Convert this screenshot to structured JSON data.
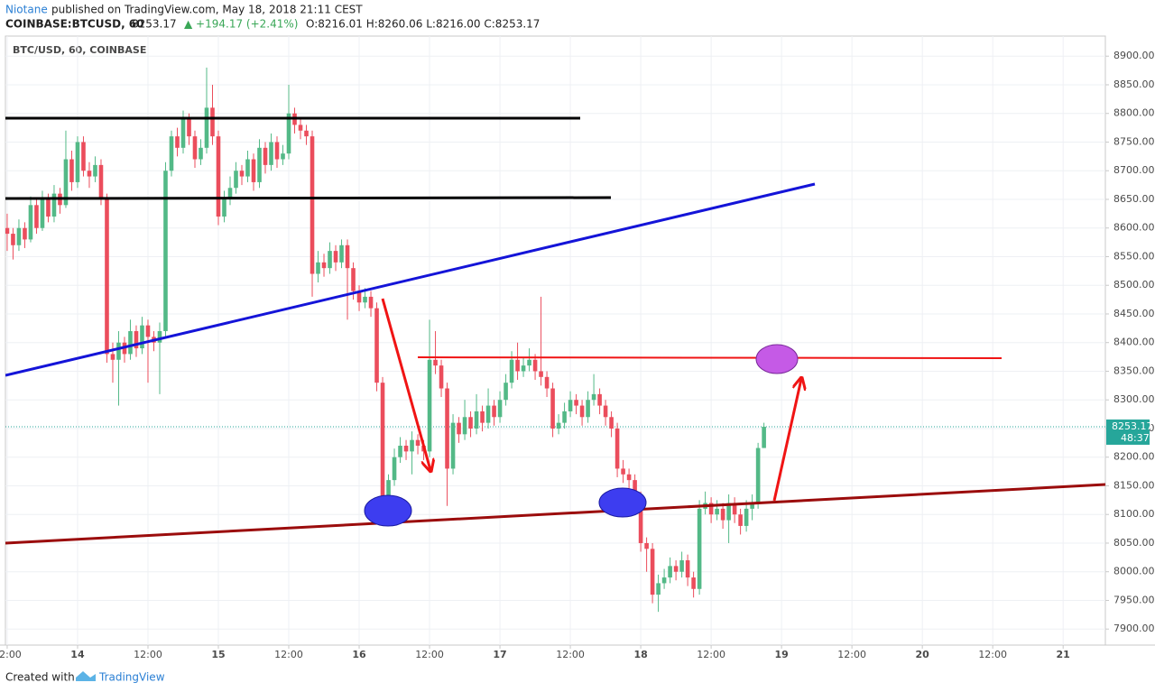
{
  "header": {
    "author": "Niotane",
    "published": "published on TradingView.com, May 18, 2018 21:11 CEST"
  },
  "symbol": {
    "name": "COINBASE:BTCUSD, 60",
    "price": "8253.17",
    "change": "▲ +194.17 (+2.41%)",
    "ohlc": "O:8216.01 H:8260.06 L:8216.00 C:8253.17"
  },
  "footer": {
    "created": "Created with",
    "brand": "TradingView"
  },
  "chart_data": {
    "type": "candlestick",
    "title": "BTC/USD, 60, COINBASE",
    "up_color": "#53b987",
    "down_color": "#eb4d5c",
    "grid": true,
    "last_price": 8253.17,
    "last_price_label": "8253.17",
    "countdown": "48:37",
    "last_price_color": "#26a69a",
    "xlim": [
      -0.3,
      187.2
    ],
    "xticks": [
      {
        "value": 0,
        "label": "12:00"
      },
      {
        "value": 12,
        "label": "14"
      },
      {
        "value": 24,
        "label": "12:00"
      },
      {
        "value": 36,
        "label": "15"
      },
      {
        "value": 48,
        "label": "12:00"
      },
      {
        "value": 60,
        "label": "16"
      },
      {
        "value": 72,
        "label": "12:00"
      },
      {
        "value": 84,
        "label": "17"
      },
      {
        "value": 96,
        "label": "12:00"
      },
      {
        "value": 108,
        "label": "18"
      },
      {
        "value": 120,
        "label": "12:00"
      },
      {
        "value": 132,
        "label": "19"
      },
      {
        "value": 144,
        "label": "12:00"
      },
      {
        "value": 156,
        "label": "20"
      },
      {
        "value": 168,
        "label": "12:00"
      },
      {
        "value": 180,
        "label": "21"
      }
    ],
    "ylim": [
      7872,
      8935
    ],
    "yticks": [
      {
        "value": 7900,
        "label": "7900.00"
      },
      {
        "value": 7950,
        "label": "7950.00"
      },
      {
        "value": 8000,
        "label": "8000.00"
      },
      {
        "value": 8050,
        "label": "8050.00"
      },
      {
        "value": 8100,
        "label": "8100.00"
      },
      {
        "value": 8150,
        "label": "8150.00"
      },
      {
        "value": 8200,
        "label": "8200.00"
      },
      {
        "value": 8250,
        "label": "8250.00"
      },
      {
        "value": 8300,
        "label": "8300.00"
      },
      {
        "value": 8350,
        "label": "8350.00"
      },
      {
        "value": 8400,
        "label": "8400.00"
      },
      {
        "value": 8450,
        "label": "8450.00"
      },
      {
        "value": 8500,
        "label": "8500.00"
      },
      {
        "value": 8550,
        "label": "8550.00"
      },
      {
        "value": 8600,
        "label": "8600.00"
      },
      {
        "value": 8650,
        "label": "8650.00"
      },
      {
        "value": 8700,
        "label": "8700.00"
      },
      {
        "value": 8750,
        "label": "8750.00"
      },
      {
        "value": 8800,
        "label": "8800.00"
      },
      {
        "value": 8850,
        "label": "8850.00"
      },
      {
        "value": 8900,
        "label": "8900.00"
      }
    ],
    "candles": [
      [
        8600,
        8625,
        8560,
        8590
      ],
      [
        8590,
        8600,
        8545,
        8570
      ],
      [
        8570,
        8615,
        8560,
        8600
      ],
      [
        8600,
        8610,
        8565,
        8580
      ],
      [
        8580,
        8655,
        8575,
        8640
      ],
      [
        8640,
        8650,
        8590,
        8600
      ],
      [
        8600,
        8665,
        8595,
        8650
      ],
      [
        8650,
        8660,
        8610,
        8620
      ],
      [
        8620,
        8675,
        8610,
        8660
      ],
      [
        8660,
        8670,
        8625,
        8640
      ],
      [
        8640,
        8770,
        8635,
        8720
      ],
      [
        8720,
        8735,
        8665,
        8680
      ],
      [
        8680,
        8760,
        8670,
        8750
      ],
      [
        8750,
        8760,
        8690,
        8700
      ],
      [
        8700,
        8715,
        8670,
        8690
      ],
      [
        8690,
        8725,
        8680,
        8710
      ],
      [
        8710,
        8720,
        8640,
        8650
      ],
      [
        8650,
        8660,
        8365,
        8380
      ],
      [
        8380,
        8400,
        8330,
        8370
      ],
      [
        8370,
        8420,
        8290,
        8400
      ],
      [
        8400,
        8410,
        8365,
        8380
      ],
      [
        8380,
        8440,
        8370,
        8420
      ],
      [
        8420,
        8430,
        8375,
        8390
      ],
      [
        8390,
        8445,
        8380,
        8430
      ],
      [
        8430,
        8440,
        8330,
        8410
      ],
      [
        8410,
        8420,
        8385,
        8400
      ],
      [
        8400,
        8435,
        8310,
        8420
      ],
      [
        8420,
        8715,
        8410,
        8700
      ],
      [
        8700,
        8770,
        8690,
        8760
      ],
      [
        8760,
        8775,
        8725,
        8740
      ],
      [
        8740,
        8805,
        8730,
        8790
      ],
      [
        8790,
        8800,
        8745,
        8760
      ],
      [
        8760,
        8770,
        8705,
        8720
      ],
      [
        8720,
        8755,
        8710,
        8740
      ],
      [
        8740,
        8880,
        8730,
        8810
      ],
      [
        8810,
        8850,
        8745,
        8760
      ],
      [
        8760,
        8770,
        8605,
        8620
      ],
      [
        8620,
        8665,
        8610,
        8650
      ],
      [
        8650,
        8690,
        8640,
        8670
      ],
      [
        8670,
        8715,
        8660,
        8700
      ],
      [
        8700,
        8710,
        8675,
        8690
      ],
      [
        8690,
        8735,
        8680,
        8720
      ],
      [
        8720,
        8730,
        8665,
        8680
      ],
      [
        8680,
        8755,
        8670,
        8740
      ],
      [
        8740,
        8750,
        8695,
        8710
      ],
      [
        8710,
        8765,
        8700,
        8750
      ],
      [
        8750,
        8760,
        8705,
        8720
      ],
      [
        8720,
        8745,
        8710,
        8730
      ],
      [
        8730,
        8850,
        8720,
        8800
      ],
      [
        8800,
        8810,
        8765,
        8780
      ],
      [
        8780,
        8790,
        8755,
        8770
      ],
      [
        8770,
        8780,
        8745,
        8760
      ],
      [
        8760,
        8770,
        8480,
        8520
      ],
      [
        8520,
        8560,
        8505,
        8540
      ],
      [
        8540,
        8555,
        8515,
        8530
      ],
      [
        8530,
        8575,
        8520,
        8560
      ],
      [
        8560,
        8570,
        8525,
        8540
      ],
      [
        8540,
        8580,
        8530,
        8570
      ],
      [
        8570,
        8580,
        8440,
        8530
      ],
      [
        8530,
        8540,
        8475,
        8490
      ],
      [
        8490,
        8500,
        8455,
        8470
      ],
      [
        8470,
        8495,
        8460,
        8480
      ],
      [
        8480,
        8490,
        8445,
        8460
      ],
      [
        8460,
        8470,
        8315,
        8330
      ],
      [
        8330,
        8340,
        8115,
        8130
      ],
      [
        8130,
        8170,
        8120,
        8160
      ],
      [
        8160,
        8215,
        8150,
        8200
      ],
      [
        8200,
        8235,
        8190,
        8220
      ],
      [
        8220,
        8230,
        8195,
        8210
      ],
      [
        8210,
        8245,
        8170,
        8230
      ],
      [
        8230,
        8240,
        8205,
        8220
      ],
      [
        8220,
        8230,
        8195,
        8210
      ],
      [
        8210,
        8440,
        8200,
        8370
      ],
      [
        8370,
        8420,
        8345,
        8360
      ],
      [
        8360,
        8370,
        8305,
        8320
      ],
      [
        8320,
        8330,
        8115,
        8180
      ],
      [
        8180,
        8275,
        8170,
        8260
      ],
      [
        8260,
        8270,
        8225,
        8240
      ],
      [
        8240,
        8300,
        8230,
        8270
      ],
      [
        8270,
        8280,
        8235,
        8250
      ],
      [
        8250,
        8310,
        8240,
        8280
      ],
      [
        8280,
        8290,
        8245,
        8260
      ],
      [
        8260,
        8320,
        8250,
        8290
      ],
      [
        8290,
        8300,
        8255,
        8270
      ],
      [
        8270,
        8315,
        8260,
        8300
      ],
      [
        8300,
        8345,
        8290,
        8330
      ],
      [
        8330,
        8385,
        8320,
        8370
      ],
      [
        8370,
        8400,
        8335,
        8350
      ],
      [
        8350,
        8375,
        8340,
        8360
      ],
      [
        8360,
        8390,
        8350,
        8370
      ],
      [
        8370,
        8380,
        8335,
        8350
      ],
      [
        8350,
        8480,
        8325,
        8340
      ],
      [
        8340,
        8350,
        8305,
        8320
      ],
      [
        8320,
        8330,
        8235,
        8250
      ],
      [
        8250,
        8275,
        8240,
        8260
      ],
      [
        8260,
        8295,
        8250,
        8280
      ],
      [
        8280,
        8315,
        8270,
        8300
      ],
      [
        8300,
        8310,
        8275,
        8290
      ],
      [
        8290,
        8300,
        8255,
        8270
      ],
      [
        8270,
        8315,
        8260,
        8300
      ],
      [
        8300,
        8345,
        8290,
        8310
      ],
      [
        8310,
        8320,
        8275,
        8290
      ],
      [
        8290,
        8300,
        8255,
        8270
      ],
      [
        8270,
        8280,
        8235,
        8250
      ],
      [
        8250,
        8260,
        8165,
        8180
      ],
      [
        8180,
        8195,
        8155,
        8170
      ],
      [
        8170,
        8180,
        8145,
        8160
      ],
      [
        8160,
        8170,
        8115,
        8130
      ],
      [
        8130,
        8140,
        8035,
        8050
      ],
      [
        8050,
        8060,
        8000,
        8040
      ],
      [
        8040,
        8050,
        7945,
        7960
      ],
      [
        7960,
        7995,
        7930,
        7980
      ],
      [
        7980,
        8005,
        7970,
        7990
      ],
      [
        7990,
        8025,
        7980,
        8010
      ],
      [
        8010,
        8020,
        7985,
        8000
      ],
      [
        8000,
        8035,
        7990,
        8020
      ],
      [
        8020,
        8030,
        7975,
        7990
      ],
      [
        7990,
        8000,
        7955,
        7970
      ],
      [
        7970,
        8125,
        7960,
        8110
      ],
      [
        8110,
        8140,
        8100,
        8120
      ],
      [
        8120,
        8130,
        8085,
        8100
      ],
      [
        8100,
        8125,
        8090,
        8110
      ],
      [
        8110,
        8120,
        8075,
        8090
      ],
      [
        8090,
        8135,
        8050,
        8120
      ],
      [
        8120,
        8130,
        8085,
        8100
      ],
      [
        8100,
        8110,
        8065,
        8080
      ],
      [
        8080,
        8125,
        8070,
        8110
      ],
      [
        8110,
        8135,
        8090,
        8120
      ],
      [
        8120,
        8225,
        8110,
        8216.01
      ],
      [
        8216.01,
        8260.06,
        8216,
        8253.17
      ]
    ]
  }
}
